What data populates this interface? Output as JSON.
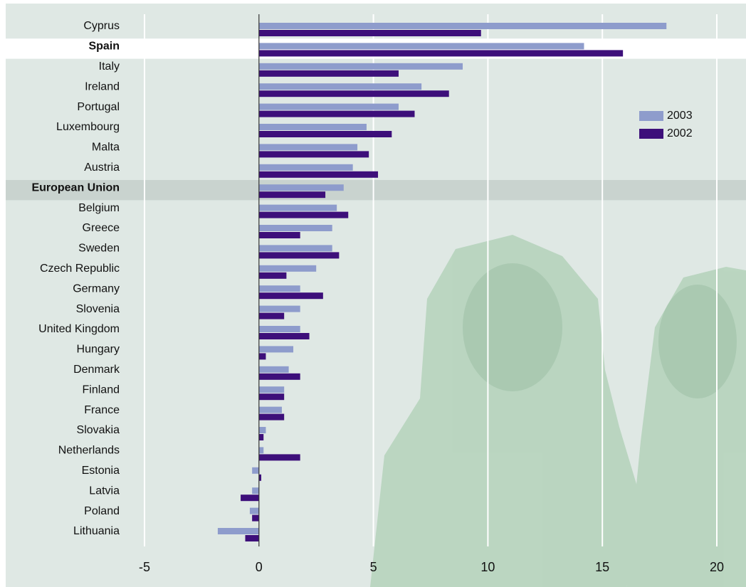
{
  "chart_data": {
    "type": "hbar",
    "categories": [
      "Cyprus",
      "Spain",
      "Italy",
      "Ireland",
      "Portugal",
      "Luxembourg",
      "Malta",
      "Austria",
      "European Union",
      "Belgium",
      "Greece",
      "Sweden",
      "Czech Republic",
      "Germany",
      "Slovenia",
      "United Kingdom",
      "Hungary",
      "Denmark",
      "Finland",
      "France",
      "Slovakia",
      "Netherlands",
      "Estonia",
      "Latvia",
      "Poland",
      "Lithuania"
    ],
    "series": [
      {
        "name": "2003",
        "color": "#8e9ccc",
        "values": [
          17.8,
          14.2,
          8.9,
          7.1,
          6.1,
          4.7,
          4.3,
          4.1,
          3.7,
          3.4,
          3.2,
          3.2,
          2.5,
          1.8,
          1.8,
          1.8,
          1.5,
          1.3,
          1.1,
          1.0,
          0.3,
          0.2,
          -0.3,
          -0.3,
          -0.4,
          -1.8
        ]
      },
      {
        "name": "2002",
        "color": "#3d0f7a",
        "values": [
          9.7,
          15.9,
          6.1,
          8.3,
          6.8,
          5.8,
          4.8,
          5.2,
          2.9,
          3.9,
          1.8,
          3.5,
          1.2,
          2.8,
          1.1,
          2.2,
          0.3,
          1.8,
          1.1,
          1.1,
          0.2,
          1.8,
          0.1,
          -0.8,
          -0.3,
          -0.6
        ]
      }
    ],
    "highlighted_categories": [
      1,
      8
    ],
    "xlim": [
      -5,
      20
    ],
    "xticks": [
      -5,
      0,
      5,
      10,
      15,
      20
    ],
    "grid": true,
    "legend": "right"
  }
}
